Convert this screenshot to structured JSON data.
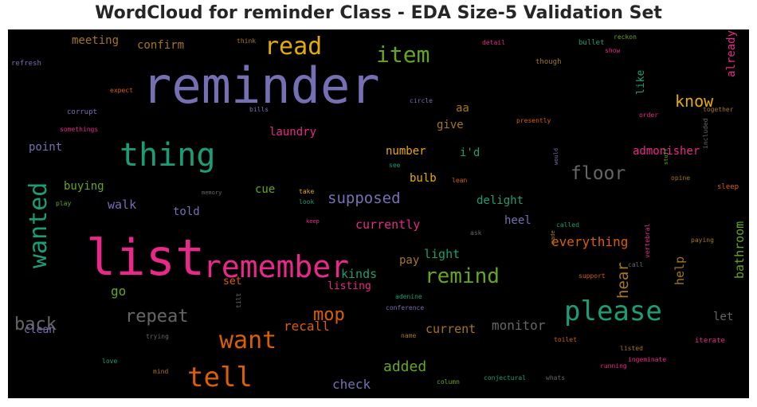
{
  "title": "WordCloud for reminder Class - EDA Size-5 Validation Set",
  "chart_data": {
    "type": "wordcloud",
    "background": "#000000",
    "palette": [
      "#7570b3",
      "#1b9e77",
      "#d95f02",
      "#e7298a",
      "#66a61e",
      "#e6ab02",
      "#a6761d",
      "#666666"
    ],
    "words": [
      {
        "text": "reminder",
        "color": "#7570b3"
      },
      {
        "text": "list",
        "color": "#e7298a"
      },
      {
        "text": "remember",
        "color": "#e7298a"
      },
      {
        "text": "thing",
        "color": "#1b9e77"
      },
      {
        "text": "please",
        "color": "#1b9e77"
      },
      {
        "text": "tell",
        "color": "#d95f02"
      },
      {
        "text": "want",
        "color": "#d95f02"
      },
      {
        "text": "read",
        "color": "#e6ab02"
      },
      {
        "text": "wanted",
        "color": "#1b9e77"
      },
      {
        "text": "item",
        "color": "#66a61e"
      },
      {
        "text": "remind",
        "color": "#66a61e"
      },
      {
        "text": "floor",
        "color": "#666666"
      },
      {
        "text": "repeat",
        "color": "#666666"
      },
      {
        "text": "back",
        "color": "#666666"
      },
      {
        "text": "mop",
        "color": "#d95f02"
      },
      {
        "text": "know",
        "color": "#e6ab02"
      },
      {
        "text": "supposed",
        "color": "#7570b3"
      },
      {
        "text": "hear",
        "color": "#a6761d"
      },
      {
        "text": "added",
        "color": "#66a61e"
      },
      {
        "text": "monitor",
        "color": "#666666"
      },
      {
        "text": "recall",
        "color": "#d95f02"
      },
      {
        "text": "everything",
        "color": "#d95f02"
      },
      {
        "text": "check",
        "color": "#7570b3"
      },
      {
        "text": "light",
        "color": "#1b9e77"
      },
      {
        "text": "kinds",
        "color": "#1b9e77"
      },
      {
        "text": "currently",
        "color": "#e7298a"
      },
      {
        "text": "help",
        "color": "#a6761d"
      },
      {
        "text": "current",
        "color": "#a6761d"
      },
      {
        "text": "like",
        "color": "#1b9e77"
      },
      {
        "text": "already",
        "color": "#e7298a"
      },
      {
        "text": "bathroom",
        "color": "#66a61e"
      },
      {
        "text": "admonisher",
        "color": "#e7298a"
      },
      {
        "text": "heel",
        "color": "#7570b3"
      },
      {
        "text": "delight",
        "color": "#1b9e77"
      },
      {
        "text": "walk",
        "color": "#7570b3"
      },
      {
        "text": "buying",
        "color": "#66a61e"
      },
      {
        "text": "told",
        "color": "#7570b3"
      },
      {
        "text": "number",
        "color": "#e6ab02"
      },
      {
        "text": "bulb",
        "color": "#e6ab02"
      },
      {
        "text": "cue",
        "color": "#66a61e"
      },
      {
        "text": "i'd",
        "color": "#1b9e77"
      },
      {
        "text": "give",
        "color": "#a6761d"
      },
      {
        "text": "aa",
        "color": "#a6761d"
      },
      {
        "text": "laundry",
        "color": "#e7298a"
      },
      {
        "text": "point",
        "color": "#7570b3"
      },
      {
        "text": "meeting",
        "color": "#a6761d"
      },
      {
        "text": "confirm",
        "color": "#a6761d"
      },
      {
        "text": "go",
        "color": "#66a61e"
      },
      {
        "text": "pay",
        "color": "#a6761d"
      },
      {
        "text": "listing",
        "color": "#e7298a"
      },
      {
        "text": "set",
        "color": "#d95f02"
      },
      {
        "text": "clean",
        "color": "#7570b3"
      },
      {
        "text": "let",
        "color": "#666666"
      },
      {
        "text": "refresh",
        "color": "#7570b3"
      },
      {
        "text": "think",
        "color": "#a6761d"
      },
      {
        "text": "detail",
        "color": "#e7298a"
      },
      {
        "text": "bullet",
        "color": "#1b9e77"
      },
      {
        "text": "reckon",
        "color": "#66a61e"
      },
      {
        "text": "show",
        "color": "#e7298a"
      },
      {
        "text": "though",
        "color": "#a6761d"
      },
      {
        "text": "expect",
        "color": "#d95f02"
      },
      {
        "text": "corrupt",
        "color": "#7570b3"
      },
      {
        "text": "bills",
        "color": "#7570b3"
      },
      {
        "text": "circle",
        "color": "#7570b3"
      },
      {
        "text": "somethings",
        "color": "#e7298a"
      },
      {
        "text": "presently",
        "color": "#d95f02"
      },
      {
        "text": "order",
        "color": "#e7298a"
      },
      {
        "text": "together",
        "color": "#a6761d"
      },
      {
        "text": "see",
        "color": "#1b9e77"
      },
      {
        "text": "lean",
        "color": "#d95f02"
      },
      {
        "text": "would",
        "color": "#7570b3"
      },
      {
        "text": "stuff",
        "color": "#66a61e"
      },
      {
        "text": "opine",
        "color": "#a6761d"
      },
      {
        "text": "included",
        "color": "#666666"
      },
      {
        "text": "sleep",
        "color": "#d95f02"
      },
      {
        "text": "memory",
        "color": "#666666"
      },
      {
        "text": "take",
        "color": "#e6ab02"
      },
      {
        "text": "look",
        "color": "#1b9e77"
      },
      {
        "text": "play",
        "color": "#66a61e"
      },
      {
        "text": "keep",
        "color": "#e7298a"
      },
      {
        "text": "called",
        "color": "#1b9e77"
      },
      {
        "text": "paying",
        "color": "#a6761d"
      },
      {
        "text": "ask",
        "color": "#666666"
      },
      {
        "text": "made",
        "color": "#a6761d"
      },
      {
        "text": "call",
        "color": "#666666"
      },
      {
        "text": "support",
        "color": "#d95f02"
      },
      {
        "text": "vertebral",
        "color": "#e7298a"
      },
      {
        "text": "adenine",
        "color": "#1b9e77"
      },
      {
        "text": "conference",
        "color": "#7570b3"
      },
      {
        "text": "tilt",
        "color": "#666666"
      },
      {
        "text": "trying",
        "color": "#666666"
      },
      {
        "text": "name",
        "color": "#a6761d"
      },
      {
        "text": "toilet",
        "color": "#d95f02"
      },
      {
        "text": "iterate",
        "color": "#e7298a"
      },
      {
        "text": "listed",
        "color": "#a6761d"
      },
      {
        "text": "ingeminate",
        "color": "#e7298a"
      },
      {
        "text": "running",
        "color": "#e7298a"
      },
      {
        "text": "love",
        "color": "#1b9e77"
      },
      {
        "text": "mind",
        "color": "#a6761d"
      },
      {
        "text": "column",
        "color": "#66a61e"
      },
      {
        "text": "conjectural",
        "color": "#1b9e77"
      },
      {
        "text": "whats",
        "color": "#666666"
      }
    ]
  }
}
